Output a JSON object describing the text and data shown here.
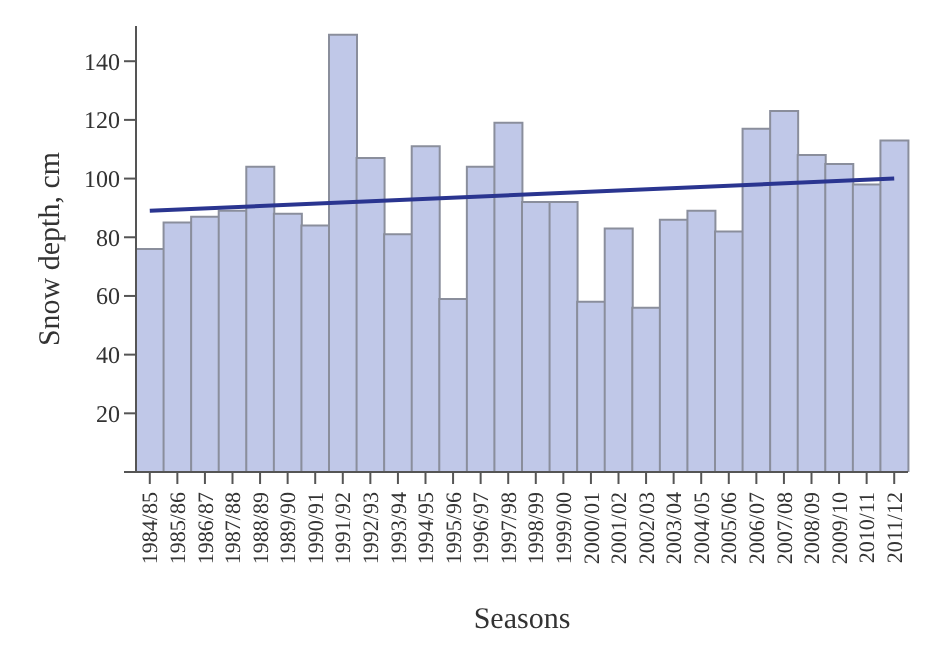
{
  "chart_data": {
    "type": "bar",
    "xlabel": "Seasons",
    "ylabel": "Snow depth, cm",
    "categories": [
      "1984/85",
      "1985/86",
      "1986/87",
      "1987/88",
      "1988/89",
      "1989/90",
      "1990/91",
      "1991/92",
      "1992/93",
      "1993/94",
      "1994/95",
      "1995/96",
      "1996/97",
      "1997/98",
      "1998/99",
      "1999/00",
      "2000/01",
      "2001/02",
      "2002/03",
      "2003/04",
      "2004/05",
      "2005/06",
      "2006/07",
      "2007/08",
      "2008/09",
      "2009/10",
      "2010/11",
      "2011/12"
    ],
    "series": [
      {
        "color": "#c0c8e8",
        "values": [
          76,
          85,
          87,
          89,
          104,
          88,
          84,
          149,
          107,
          81,
          111,
          59,
          104,
          119,
          92,
          92,
          58,
          83,
          56,
          86,
          89,
          82,
          117,
          123,
          108,
          105,
          98,
          113
        ]
      },
      {
        "type": "line",
        "color": "#2a3590",
        "x": [
          "1984/85",
          "2011/12"
        ],
        "values": [
          89,
          100
        ]
      }
    ],
    "ylim": [
      0,
      152
    ],
    "yticks": [
      {
        "value": 0,
        "label": null
      },
      20,
      40,
      60,
      80,
      100,
      120,
      140
    ]
  }
}
